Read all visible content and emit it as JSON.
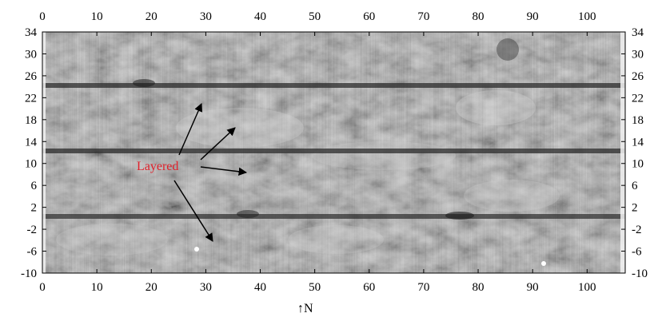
{
  "image": {
    "description_kind": "grayscale geophysical survey map with axis scales",
    "x_ticks": [
      "0",
      "10",
      "20",
      "30",
      "40",
      "50",
      "60",
      "70",
      "80",
      "90",
      "100"
    ],
    "y_ticks": [
      "34",
      "30",
      "26",
      "22",
      "18",
      "14",
      "10",
      "6",
      "2",
      "-2",
      "-6",
      "-10"
    ],
    "annotation": "Layered",
    "north_label": "↑N",
    "colors": {
      "annotation": "#e0202a",
      "arrow": "#000000",
      "background": "#ffffff"
    }
  }
}
